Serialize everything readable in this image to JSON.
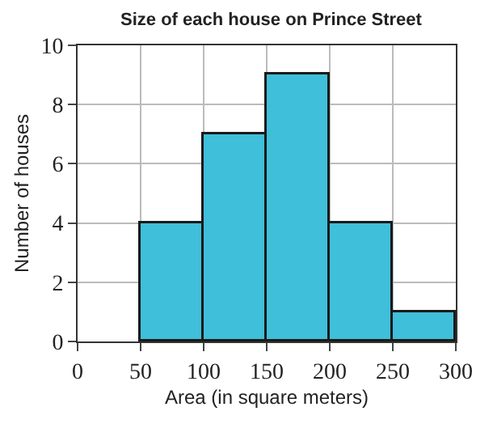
{
  "chart_data": {
    "type": "histogram",
    "title": "Size of each house on Prince Street",
    "xlabel": "Area (in square meters)",
    "ylabel": "Number of houses",
    "bins": [
      50,
      100,
      150,
      200,
      250,
      300
    ],
    "values": [
      4,
      7,
      9,
      4,
      1
    ],
    "color": "#3fbfd9",
    "xlim": [
      0,
      300
    ],
    "xticks": [
      0,
      50,
      100,
      150,
      200,
      250,
      300
    ],
    "ylim": [
      0,
      10
    ],
    "yticks": [
      0,
      2,
      4,
      6,
      8,
      10
    ],
    "grid": true
  }
}
